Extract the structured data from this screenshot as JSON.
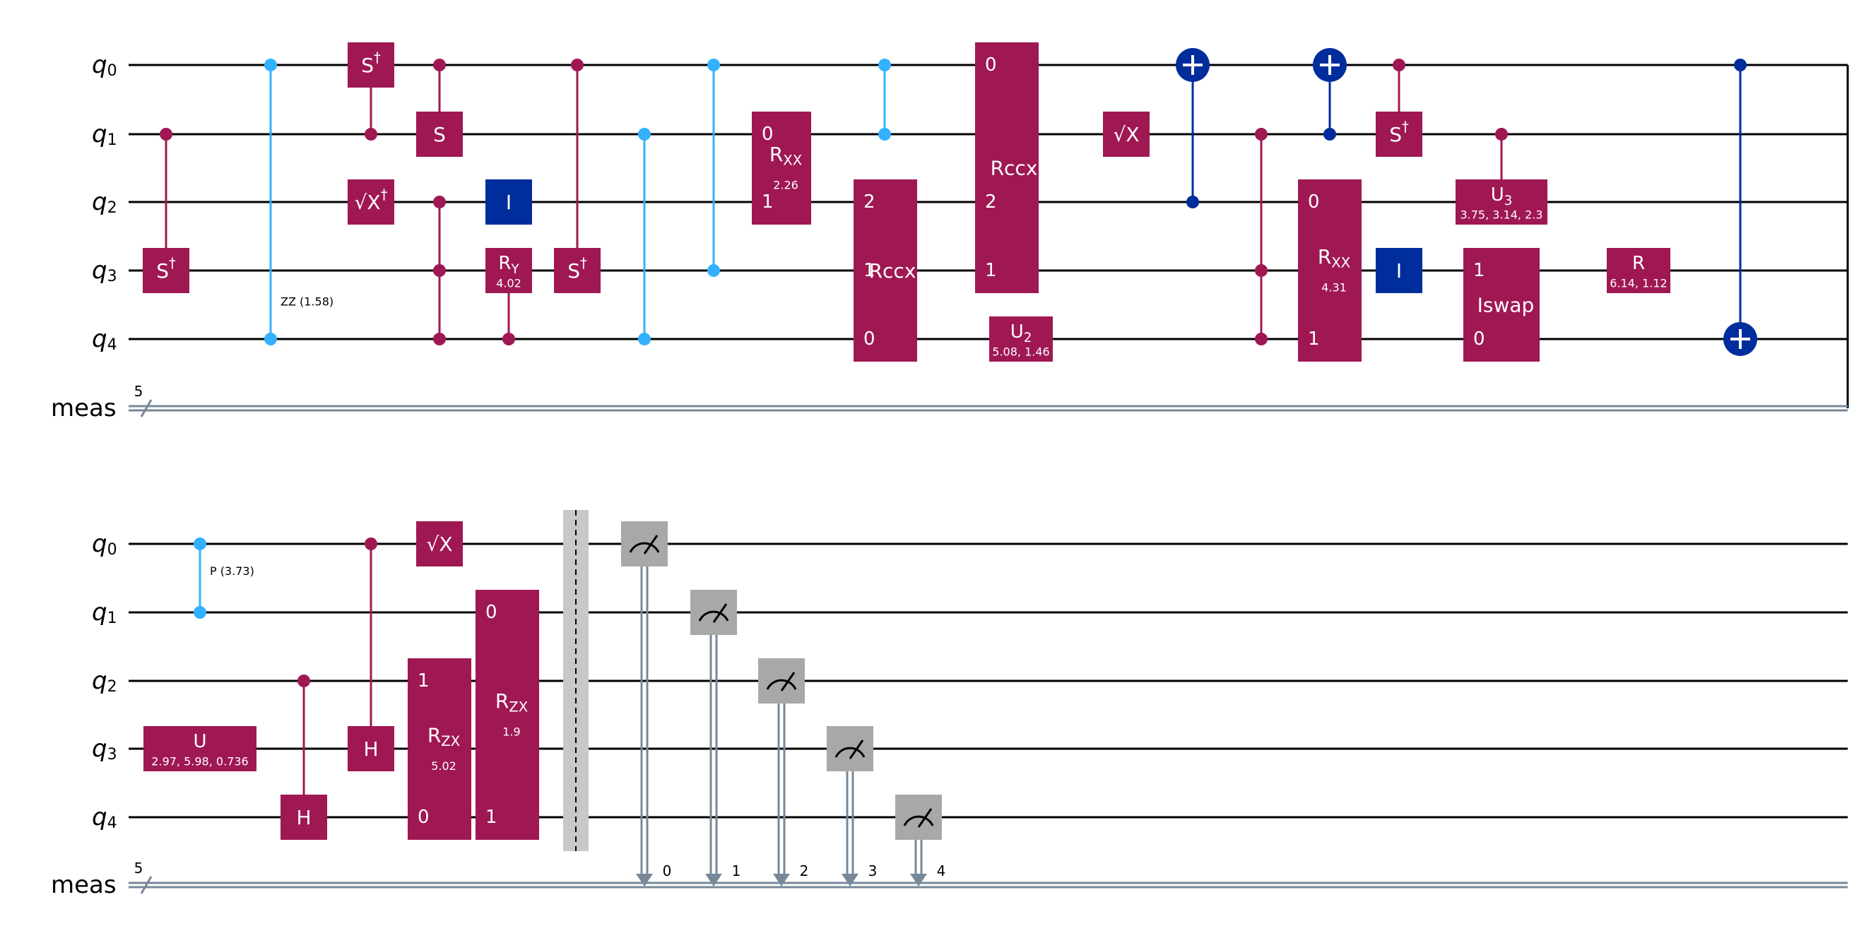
{
  "colors": {
    "wire": "#000000",
    "classical_wire": "#778899",
    "gate_magenta": "#9F1853",
    "gate_light_blue": "#33B1FF",
    "gate_dark_blue": "#002D9C",
    "measure_gray": "#A8A8A8",
    "barrier_gray": "#C8C8C8",
    "text_white": "#FFFFFF",
    "text_black": "#000000"
  },
  "rows": [
    {
      "wire_labels": [
        {
          "name": "q",
          "sub": "0"
        },
        {
          "name": "q",
          "sub": "1"
        },
        {
          "name": "q",
          "sub": "2"
        },
        {
          "name": "q",
          "sub": "3"
        },
        {
          "name": "q",
          "sub": "4"
        }
      ],
      "classical_label": "meas",
      "classical_width": "5",
      "gates": [
        {
          "kind": "ctrl",
          "color": "gate_magenta",
          "dots": [
            1
          ],
          "target": {
            "wire": 3,
            "label": "S",
            "sup": "†"
          }
        },
        {
          "kind": "rzz",
          "color": "gate_light_blue",
          "dots": [
            0,
            4
          ],
          "label": "ZZ (1.58)"
        },
        {
          "kind": "ctrl",
          "color": "gate_magenta",
          "dots": [
            1
          ],
          "target": {
            "wire": 0,
            "label": "S",
            "sup": "†"
          }
        },
        {
          "kind": "box",
          "color": "gate_magenta",
          "wire": 2,
          "label": "√X",
          "sup": "†"
        },
        {
          "kind": "ctrl",
          "color": "gate_magenta",
          "dots": [
            0
          ],
          "target": {
            "wire": 1,
            "label": "S"
          }
        },
        {
          "kind": "ccz",
          "color": "gate_magenta",
          "dots": [
            2,
            3,
            4
          ]
        },
        {
          "kind": "box",
          "color": "gate_dark_blue",
          "wire": 2,
          "label": "I"
        },
        {
          "kind": "ctrl",
          "color": "gate_magenta",
          "dots": [
            4
          ],
          "target": {
            "wire": 3,
            "label": "R",
            "sub": "Y",
            "param": "4.02"
          }
        },
        {
          "kind": "ctrl",
          "color": "gate_magenta",
          "dots": [
            0
          ],
          "target": {
            "wire": 3,
            "label": "S",
            "sup": "†"
          }
        },
        {
          "kind": "cz",
          "color": "gate_light_blue",
          "dots": [
            1,
            4
          ]
        },
        {
          "kind": "cz",
          "color": "gate_light_blue",
          "dots": [
            0,
            3
          ]
        },
        {
          "kind": "multi",
          "color": "gate_magenta",
          "wires": [
            1,
            2
          ],
          "qubit_labels": [
            "0",
            "1"
          ],
          "label": "R",
          "sub": "XX",
          "param": "2.26"
        },
        {
          "kind": "cz",
          "color": "gate_light_blue",
          "dots": [
            0,
            1
          ]
        },
        {
          "kind": "multi",
          "color": "gate_magenta",
          "wires": [
            2,
            3,
            4
          ],
          "qubit_labels": [
            "2",
            "1",
            "0"
          ],
          "label": "Rccx"
        },
        {
          "kind": "multi",
          "color": "gate_magenta",
          "wires": [
            0,
            1,
            2,
            3
          ],
          "qubit_labels": [
            "0",
            "",
            "2",
            "1"
          ],
          "label": "Rccx"
        },
        {
          "kind": "box",
          "color": "gate_magenta",
          "wire": 4,
          "label": "U",
          "sub": "2",
          "param": "5.08, 1.46"
        },
        {
          "kind": "box",
          "color": "gate_magenta",
          "wire": 1,
          "label": "√X"
        },
        {
          "kind": "cx",
          "color": "gate_dark_blue",
          "dots": [
            2
          ],
          "target": 0
        },
        {
          "kind": "ccz",
          "color": "gate_magenta",
          "dots": [
            1,
            3,
            4
          ]
        },
        {
          "kind": "cx",
          "color": "gate_dark_blue",
          "dots": [
            1
          ],
          "target": 0
        },
        {
          "kind": "multi",
          "color": "gate_magenta",
          "wires": [
            2,
            3,
            4
          ],
          "qubit_labels": [
            "0",
            "",
            "1"
          ],
          "label": "R",
          "sub": "XX",
          "param": "4.31"
        },
        {
          "kind": "ctrl",
          "color": "gate_magenta",
          "dots": [
            0
          ],
          "target": {
            "wire": 1,
            "label": "S",
            "sup": "†"
          }
        },
        {
          "kind": "box",
          "color": "gate_dark_blue",
          "wire": 3,
          "label": "I"
        },
        {
          "kind": "ctrl",
          "color": "gate_magenta",
          "dots": [
            1
          ],
          "target": {
            "wire": 2,
            "label": "U",
            "sub": "3",
            "param": "3.75, 3.14, 2.3"
          }
        },
        {
          "kind": "multi",
          "color": "gate_magenta",
          "wires": [
            3,
            4
          ],
          "qubit_labels": [
            "1",
            "0"
          ],
          "label": "Iswap"
        },
        {
          "kind": "box",
          "color": "gate_magenta",
          "wire": 3,
          "label": "R",
          "param": "6.14, 1.12"
        },
        {
          "kind": "cx",
          "color": "gate_dark_blue",
          "dots": [
            0
          ],
          "target": 4
        }
      ]
    },
    {
      "wire_labels": [
        {
          "name": "q",
          "sub": "0"
        },
        {
          "name": "q",
          "sub": "1"
        },
        {
          "name": "q",
          "sub": "2"
        },
        {
          "name": "q",
          "sub": "3"
        },
        {
          "name": "q",
          "sub": "4"
        }
      ],
      "classical_label": "meas",
      "classical_width": "5",
      "gates": [
        {
          "kind": "cphase",
          "color": "gate_light_blue",
          "dots": [
            0,
            1
          ],
          "label": "P (3.73)"
        },
        {
          "kind": "box",
          "color": "gate_magenta",
          "wire": 3,
          "label": "U",
          "param": "2.97, 5.98, 0.736"
        },
        {
          "kind": "ctrl",
          "color": "gate_magenta",
          "dots": [
            2
          ],
          "target": {
            "wire": 4,
            "label": "H"
          }
        },
        {
          "kind": "ctrl",
          "color": "gate_magenta",
          "dots": [
            0
          ],
          "target": {
            "wire": 3,
            "label": "H"
          }
        },
        {
          "kind": "box",
          "color": "gate_magenta",
          "wire": 0,
          "label": "√X"
        },
        {
          "kind": "multi",
          "color": "gate_magenta",
          "wires": [
            2,
            3,
            4
          ],
          "qubit_labels": [
            "1",
            "",
            "0"
          ],
          "label": "R",
          "sub": "ZX",
          "param": "5.02"
        },
        {
          "kind": "multi",
          "color": "gate_magenta",
          "wires": [
            1,
            2,
            3,
            4
          ],
          "qubit_labels": [
            "0",
            "",
            "",
            "1"
          ],
          "label": "R",
          "sub": "ZX",
          "param": "1.9"
        },
        {
          "kind": "barrier"
        },
        {
          "kind": "measure",
          "wire": 0,
          "bit": "0"
        },
        {
          "kind": "measure",
          "wire": 1,
          "bit": "1"
        },
        {
          "kind": "measure",
          "wire": 2,
          "bit": "2"
        },
        {
          "kind": "measure",
          "wire": 3,
          "bit": "3"
        },
        {
          "kind": "measure",
          "wire": 4,
          "bit": "4"
        }
      ]
    }
  ]
}
